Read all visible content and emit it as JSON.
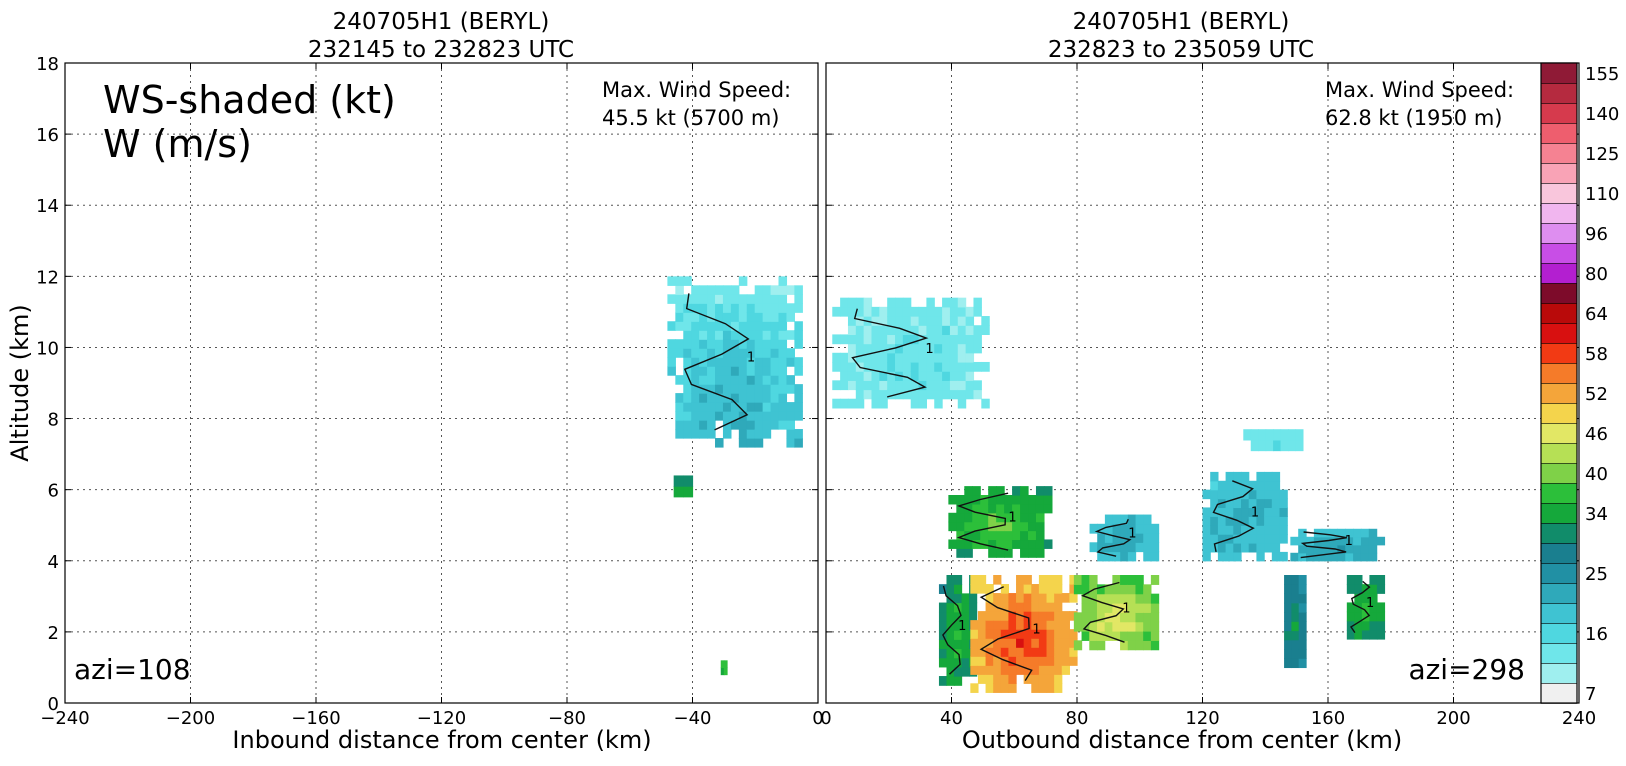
{
  "chart_data": [
    {
      "type": "heatmap",
      "title": [
        "240705H1 (BERYL)",
        "232145 to 232823 UTC"
      ],
      "xlabel": "Inbound distance from center (km)",
      "ylabel": "Altitude (km)",
      "xlim": [
        -240,
        0
      ],
      "ylim": [
        0,
        18
      ],
      "xticks": [
        "−240",
        "−200",
        "−160",
        "−120",
        "−80",
        "−40",
        "0"
      ],
      "xtick_values": [
        -240,
        -200,
        -160,
        -120,
        -80,
        -40,
        0
      ],
      "yticks": [
        "0",
        "2",
        "4",
        "6",
        "8",
        "10",
        "12",
        "14",
        "16",
        "18"
      ],
      "ytick_values": [
        0,
        2,
        4,
        6,
        8,
        10,
        12,
        14,
        16,
        18
      ],
      "grid": true,
      "field_labels": [
        "WS-shaded (kt)",
        "W (m/s)"
      ],
      "max_label": "Max. Wind Speed:",
      "max_value": "45.5 kt (5700 m)",
      "azimuth": "azi=108",
      "contour_label": "1",
      "regions": [
        {
          "x0": -48,
          "x1": -5,
          "y0": 7.2,
          "y1": 12,
          "ws": 22,
          "ws_top": 14
        },
        {
          "x0": -46,
          "x1": -40,
          "y0": 5.8,
          "y1": 6.4,
          "ws": 33
        },
        {
          "x0": -31,
          "x1": -29,
          "y0": 0.8,
          "y1": 1.2,
          "ws": 38
        }
      ]
    },
    {
      "type": "heatmap",
      "title": [
        "240705H1 (BERYL)",
        "232823 to 235059 UTC"
      ],
      "xlabel": "Outbound distance from center (km)",
      "xlim": [
        0,
        240
      ],
      "ylim": [
        0,
        18
      ],
      "xticks": [
        "0",
        "40",
        "80",
        "120",
        "160",
        "200",
        "240"
      ],
      "xtick_values": [
        0,
        40,
        80,
        120,
        160,
        200,
        240
      ],
      "grid": true,
      "max_label": "Max. Wind Speed:",
      "max_value": "62.8 kt (1950 m)",
      "azimuth": "azi=298",
      "contour_label": "1",
      "regions": [
        {
          "x0": 2,
          "x1": 52,
          "y0": 8.3,
          "y1": 11.4,
          "ws": 14
        },
        {
          "x0": 133,
          "x1": 152,
          "y0": 7.1,
          "y1": 7.7,
          "ws": 15
        },
        {
          "x0": 39,
          "x1": 72,
          "y0": 4.1,
          "y1": 6.1,
          "ws": 36
        },
        {
          "x0": 84,
          "x1": 106,
          "y0": 4.0,
          "y1": 5.3,
          "ws": 21
        },
        {
          "x0": 120,
          "x1": 147,
          "y0": 4.0,
          "y1": 6.5,
          "ws": 21
        },
        {
          "x0": 148,
          "x1": 178,
          "y0": 4.0,
          "y1": 4.9,
          "ws": 22
        },
        {
          "x0": 36,
          "x1": 48,
          "y0": 0.5,
          "y1": 3.6,
          "ws": 34
        },
        {
          "x0": 46,
          "x1": 80,
          "y0": 0.3,
          "y1": 3.6,
          "ws": 54
        },
        {
          "x0": 79,
          "x1": 106,
          "y0": 1.5,
          "y1": 3.6,
          "ws": 42
        },
        {
          "x0": 146,
          "x1": 153,
          "y0": 1.0,
          "y1": 3.6,
          "ws": 30
        },
        {
          "x0": 166,
          "x1": 178,
          "y0": 1.8,
          "y1": 3.6,
          "ws": 34
        }
      ]
    }
  ],
  "colorbar": {
    "ticks": [
      "155",
      "140",
      "125",
      "110",
      "96",
      "80",
      "64",
      "58",
      "52",
      "46",
      "40",
      "34",
      "25",
      "16",
      "7"
    ],
    "levels": [
      7,
      10,
      13,
      16,
      19,
      22,
      25,
      28,
      31,
      34,
      37,
      40,
      43,
      46,
      49,
      52,
      55,
      58,
      61,
      64,
      72,
      80,
      88,
      96,
      103,
      110,
      118,
      125,
      133,
      140,
      148,
      155,
      160
    ],
    "colors": [
      "#f0f0f0",
      "#9fefef",
      "#6fe6ea",
      "#4fd7e0",
      "#3fc3d2",
      "#2fa9ba",
      "#2190a4",
      "#1a7f8f",
      "#118c6a",
      "#15a83b",
      "#2cbf3a",
      "#7fd148",
      "#b6e055",
      "#e2e765",
      "#f4d44c",
      "#f4a53a",
      "#f57b29",
      "#f23a14",
      "#d81010",
      "#b90a0a",
      "#7d0b2a",
      "#b31fd0",
      "#c84ee6",
      "#de8ef0",
      "#f1b6ef",
      "#f9c6dc",
      "#f9a3b6",
      "#f58292",
      "#ee5e6e",
      "#d63a4d",
      "#b52a3f",
      "#8f1a36"
    ]
  }
}
